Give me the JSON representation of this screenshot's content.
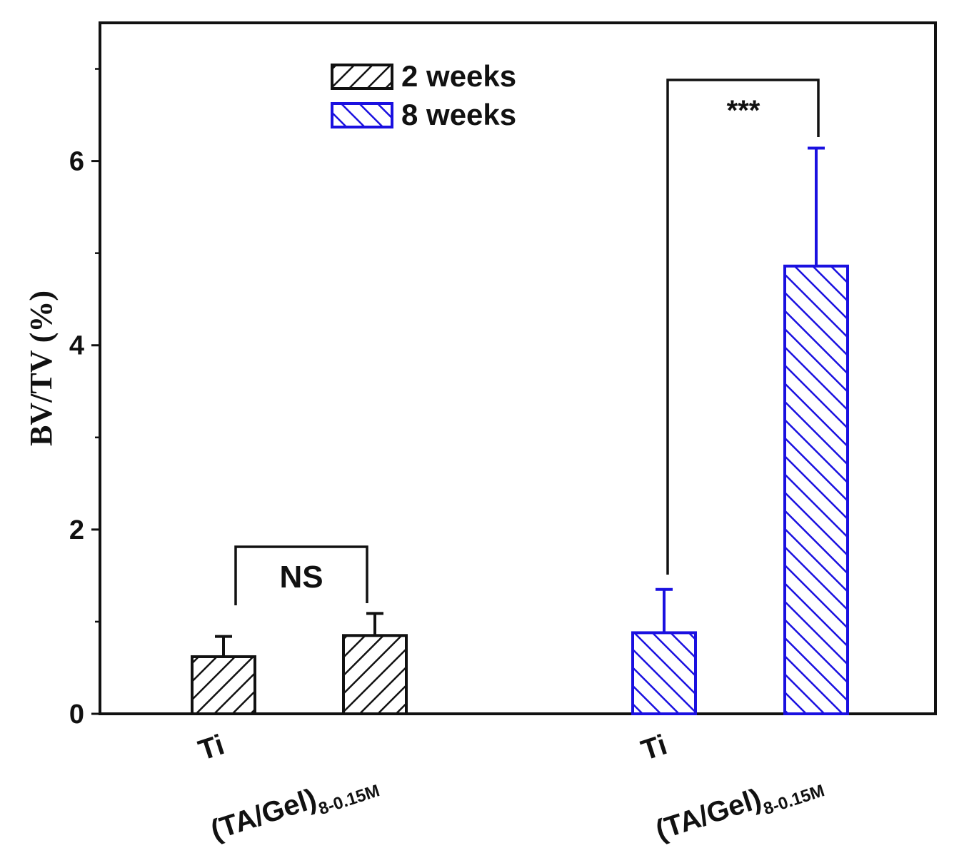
{
  "chart_data": {
    "type": "bar",
    "title": "",
    "xlabel": "",
    "ylabel": "BV/TV (%)",
    "ylim": [
      0,
      7.5
    ],
    "yticks": [
      0,
      2,
      4,
      6
    ],
    "legend_position": "top-center",
    "groups": [
      {
        "name": "2 weeks",
        "color": "#111111",
        "categories": [
          "Ti",
          "(TA/Gel)8-0.15M"
        ],
        "values": [
          0.62,
          0.85
        ],
        "errors": [
          0.22,
          0.24
        ]
      },
      {
        "name": "8 weeks",
        "color": "#1a10e0",
        "categories": [
          "Ti",
          "(TA/Gel)8-0.15M"
        ],
        "values": [
          0.88,
          4.86
        ],
        "errors": [
          0.47,
          1.28
        ]
      }
    ],
    "annotations": [
      {
        "text": "NS",
        "group": "2 weeks",
        "between": [
          "Ti",
          "(TA/Gel)8-0.15M"
        ]
      },
      {
        "text": "***",
        "group": "8 weeks",
        "between": [
          "Ti",
          "(TA/Gel)8-0.15M"
        ]
      }
    ],
    "tick_labels": {
      "ti": "Ti",
      "tagel_main": "(TA/Gel)",
      "tagel_sub": "8-0.15M"
    }
  }
}
